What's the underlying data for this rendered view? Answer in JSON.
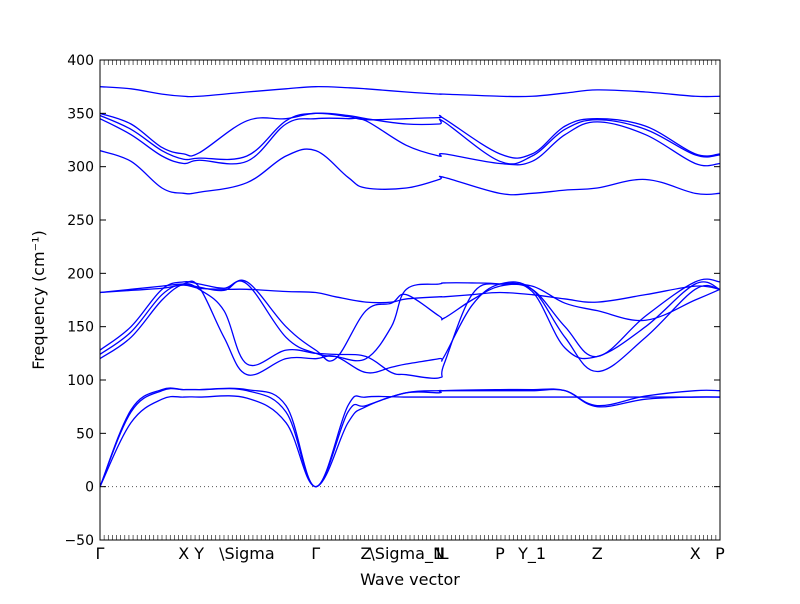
{
  "chart_data": {
    "type": "line",
    "title": "",
    "xlabel": "Wave vector",
    "ylabel": "Frequency (cm⁻¹)",
    "ylim": [
      -50,
      400
    ],
    "yticks": [
      -50,
      0,
      50,
      100,
      150,
      200,
      250,
      300,
      350,
      400
    ],
    "xlim": [
      0,
      1
    ],
    "high_symmetry_points": [
      {
        "label": "Γ",
        "x": 0.0
      },
      {
        "label": "X",
        "x": 0.135
      },
      {
        "label": "Y",
        "x": 0.16
      },
      {
        "label": "\\Sigma",
        "x": 0.237
      },
      {
        "label": "Γ",
        "x": 0.348
      },
      {
        "label": "Z",
        "x": 0.429
      },
      {
        "label": "\\Sigma_1",
        "x": 0.494
      },
      {
        "label": "N",
        "x": 0.547
      },
      {
        "label": "L",
        "x": 0.555
      },
      {
        "label": "P",
        "x": 0.645
      },
      {
        "label": "Y_1",
        "x": 0.697
      },
      {
        "label": "Z",
        "x": 0.802
      },
      {
        "label": "X",
        "x": 0.96
      },
      {
        "label": "P",
        "x": 1.0
      }
    ],
    "zero_line": true,
    "series_color": "#0000ff",
    "series": [
      {
        "x": [
          0,
          0.05,
          0.1,
          0.135,
          0.16,
          0.237,
          0.3,
          0.348,
          0.4,
          0.429,
          0.494,
          0.547,
          0.555,
          0.645,
          0.697,
          0.75,
          0.802,
          0.88,
          0.96,
          1.0
        ],
        "y": [
          0,
          60,
          82,
          84,
          84,
          83,
          60,
          0,
          60,
          75,
          88,
          90,
          90,
          90,
          90,
          90,
          76,
          85,
          90,
          90
        ]
      },
      {
        "x": [
          0,
          0.05,
          0.1,
          0.135,
          0.16,
          0.237,
          0.3,
          0.348,
          0.4,
          0.429,
          0.494,
          0.547,
          0.555,
          0.645,
          0.697,
          0.75,
          0.802,
          0.88,
          0.96,
          1.0
        ],
        "y": [
          0,
          70,
          90,
          91,
          91,
          90,
          70,
          0,
          70,
          76,
          88,
          88,
          90,
          91,
          91,
          90,
          75,
          82,
          84,
          84
        ]
      },
      {
        "x": [
          0,
          0.05,
          0.1,
          0.135,
          0.16,
          0.237,
          0.3,
          0.348,
          0.4,
          0.429,
          0.494,
          0.547,
          0.555,
          0.645,
          0.697,
          0.75,
          0.802,
          0.88,
          0.96,
          1.0
        ],
        "y": [
          0,
          72,
          91,
          91,
          91,
          91,
          76,
          0,
          76,
          84,
          84,
          84,
          84,
          84,
          84,
          84,
          84,
          84,
          84,
          84
        ]
      },
      {
        "x": [
          0,
          0.05,
          0.1,
          0.135,
          0.16,
          0.2,
          0.237,
          0.3,
          0.348,
          0.38,
          0.429,
          0.47,
          0.494,
          0.547,
          0.555,
          0.6,
          0.645,
          0.697,
          0.75,
          0.802,
          0.88,
          0.96,
          1.0
        ],
        "y": [
          120,
          140,
          175,
          190,
          187,
          140,
          105,
          120,
          120,
          122,
          107,
          112,
          115,
          120,
          122,
          170,
          190,
          185,
          140,
          108,
          140,
          185,
          185
        ]
      },
      {
        "x": [
          0,
          0.05,
          0.1,
          0.135,
          0.16,
          0.2,
          0.237,
          0.3,
          0.348,
          0.38,
          0.429,
          0.47,
          0.494,
          0.547,
          0.555,
          0.6,
          0.645,
          0.697,
          0.75,
          0.802,
          0.88,
          0.96,
          1.0
        ],
        "y": [
          124,
          145,
          180,
          190,
          185,
          165,
          115,
          128,
          125,
          124,
          122,
          107,
          105,
          102,
          115,
          180,
          190,
          183,
          130,
          122,
          150,
          190,
          185
        ]
      },
      {
        "x": [
          0,
          0.05,
          0.1,
          0.135,
          0.16,
          0.2,
          0.237,
          0.3,
          0.348,
          0.38,
          0.429,
          0.47,
          0.494,
          0.547,
          0.555,
          0.6,
          0.645,
          0.697,
          0.75,
          0.802,
          0.88,
          0.96,
          1.0
        ],
        "y": [
          128,
          150,
          185,
          192,
          190,
          186,
          190,
          140,
          125,
          122,
          120,
          150,
          185,
          190,
          191,
          191,
          190,
          185,
          150,
          122,
          160,
          192,
          192
        ]
      },
      {
        "x": [
          0,
          0.05,
          0.1,
          0.135,
          0.16,
          0.2,
          0.237,
          0.3,
          0.348,
          0.38,
          0.429,
          0.47,
          0.494,
          0.547,
          0.555,
          0.6,
          0.645,
          0.697,
          0.75,
          0.802,
          0.88,
          0.96,
          1.0
        ],
        "y": [
          182,
          185,
          188,
          190,
          187,
          184,
          192,
          150,
          128,
          120,
          165,
          172,
          180,
          160,
          158,
          175,
          188,
          188,
          172,
          165,
          156,
          175,
          185
        ]
      },
      {
        "x": [
          0,
          0.05,
          0.1,
          0.135,
          0.16,
          0.2,
          0.237,
          0.3,
          0.348,
          0.38,
          0.429,
          0.47,
          0.494,
          0.547,
          0.555,
          0.6,
          0.645,
          0.697,
          0.75,
          0.802,
          0.88,
          0.96,
          1.0
        ],
        "y": [
          182,
          184,
          186,
          189,
          186,
          185,
          185,
          183,
          182,
          178,
          173,
          173,
          176,
          178,
          178,
          180,
          182,
          180,
          176,
          173,
          180,
          188,
          185
        ]
      },
      {
        "x": [
          0,
          0.05,
          0.1,
          0.135,
          0.16,
          0.237,
          0.3,
          0.348,
          0.4,
          0.429,
          0.494,
          0.547,
          0.555,
          0.645,
          0.697,
          0.75,
          0.802,
          0.88,
          0.96,
          1.0
        ],
        "y": [
          315,
          305,
          280,
          275,
          276,
          285,
          310,
          315,
          290,
          280,
          280,
          288,
          290,
          275,
          275,
          278,
          280,
          288,
          275,
          275
        ]
      },
      {
        "x": [
          0,
          0.05,
          0.1,
          0.135,
          0.16,
          0.237,
          0.3,
          0.348,
          0.4,
          0.429,
          0.494,
          0.547,
          0.555,
          0.645,
          0.697,
          0.75,
          0.802,
          0.88,
          0.96,
          1.0
        ],
        "y": [
          345,
          330,
          310,
          303,
          306,
          305,
          340,
          345,
          345,
          343,
          320,
          310,
          312,
          303,
          305,
          330,
          342,
          330,
          303,
          303
        ]
      },
      {
        "x": [
          0,
          0.05,
          0.1,
          0.135,
          0.16,
          0.237,
          0.3,
          0.348,
          0.4,
          0.429,
          0.494,
          0.547,
          0.555,
          0.645,
          0.697,
          0.75,
          0.802,
          0.88,
          0.96,
          1.0
        ],
        "y": [
          348,
          335,
          315,
          307,
          308,
          310,
          343,
          350,
          348,
          345,
          340,
          340,
          342,
          305,
          310,
          335,
          344,
          335,
          311,
          311
        ]
      },
      {
        "x": [
          0,
          0.05,
          0.1,
          0.135,
          0.16,
          0.237,
          0.3,
          0.348,
          0.4,
          0.429,
          0.494,
          0.547,
          0.555,
          0.645,
          0.697,
          0.75,
          0.802,
          0.88,
          0.96,
          1.0
        ],
        "y": [
          350,
          340,
          318,
          312,
          313,
          343,
          345,
          350,
          347,
          344,
          345,
          346,
          345,
          312,
          312,
          338,
          345,
          338,
          312,
          312
        ]
      },
      {
        "x": [
          0,
          0.05,
          0.1,
          0.135,
          0.16,
          0.237,
          0.3,
          0.348,
          0.4,
          0.429,
          0.494,
          0.547,
          0.555,
          0.645,
          0.697,
          0.75,
          0.802,
          0.88,
          0.96,
          1.0
        ],
        "y": [
          375,
          373,
          368,
          366,
          366,
          370,
          373,
          375,
          374,
          373,
          370,
          368,
          368,
          366,
          366,
          369,
          372,
          370,
          366,
          366
        ]
      }
    ]
  }
}
